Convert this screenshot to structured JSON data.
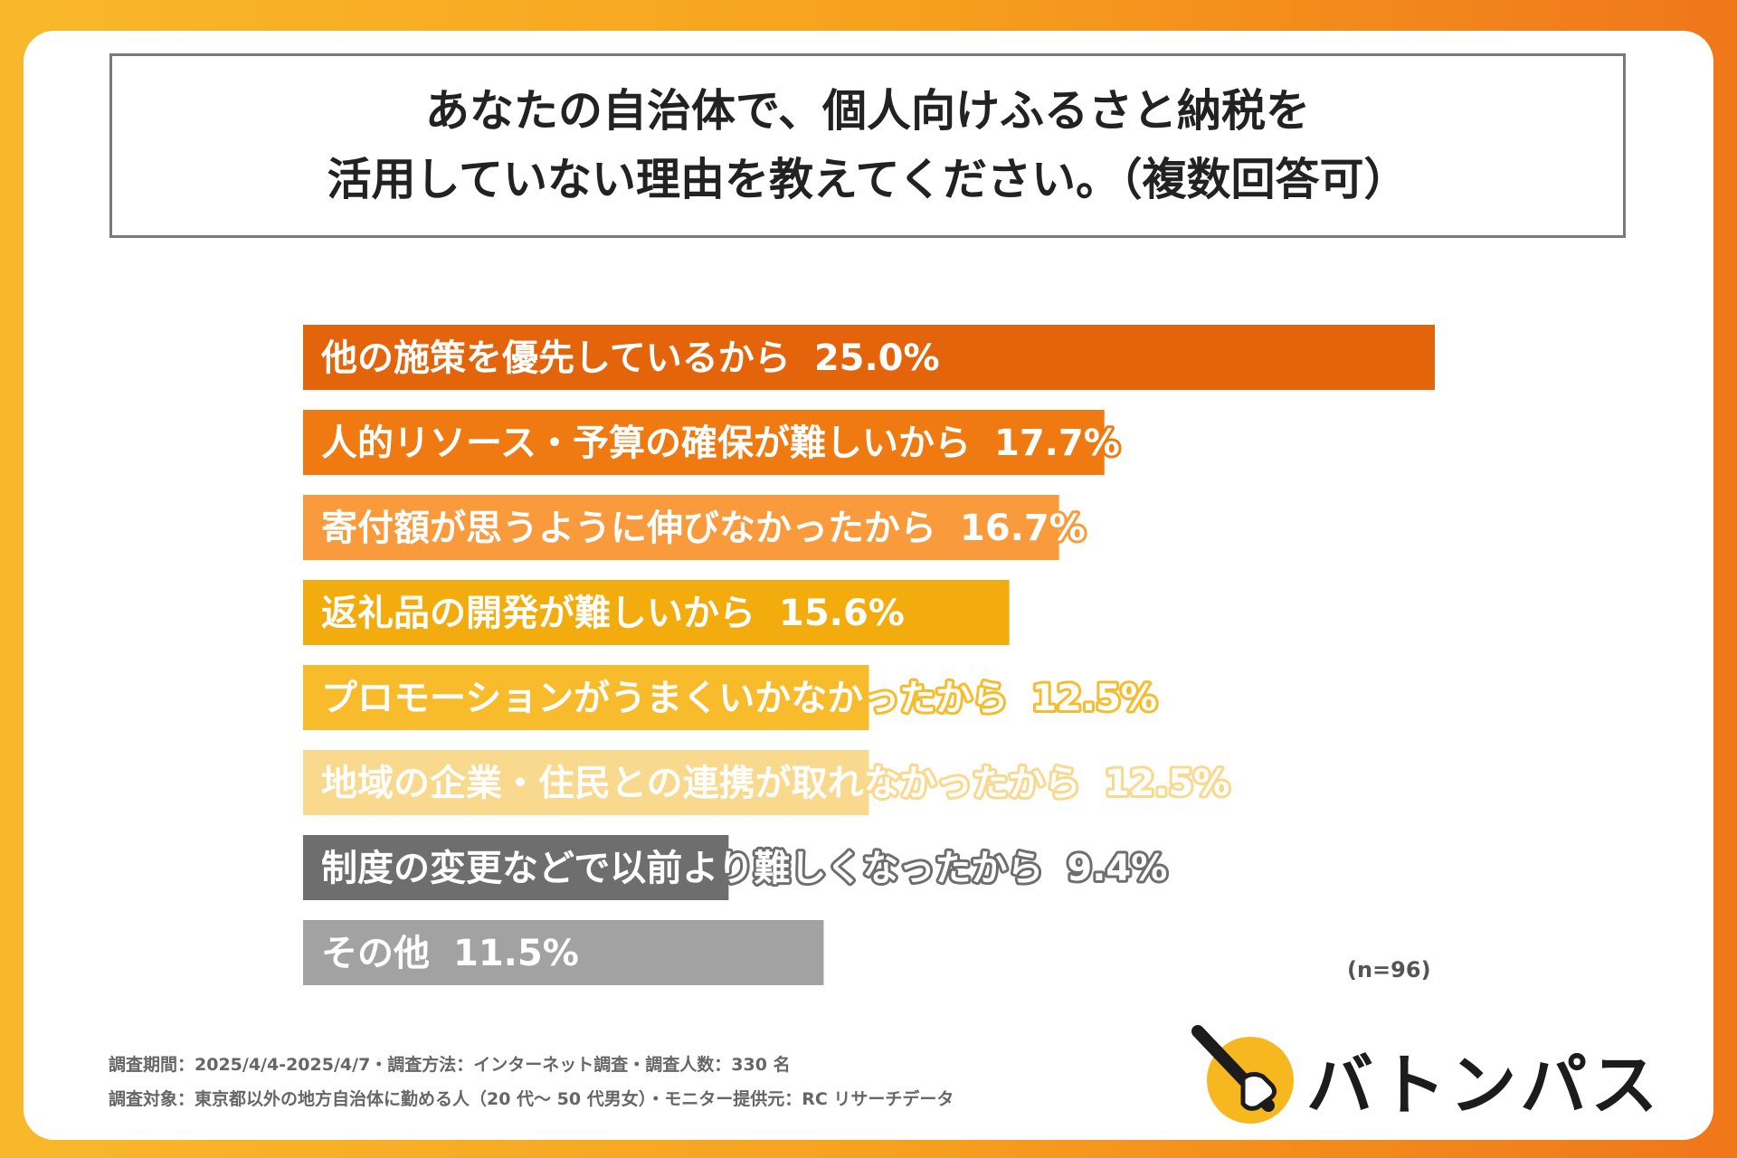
{
  "header": {
    "title_line1": "あなたの自治体で、個人向けふるさと納税を",
    "title_line2": "活用していない理由を教えてください。（複数回答可）"
  },
  "chart_data": {
    "type": "bar",
    "orientation": "horizontal",
    "categories": [
      "他の施策を優先しているから",
      "人的リソース・予算の確保が難しいから",
      "寄付額が思うように伸びなかったから",
      "返礼品の開発が難しいから",
      "プロモーションがうまくいかなかったから",
      "地域の企業・住民との連携が取れなかったから",
      "制度の変更などで以前より難しくなったから",
      "その他"
    ],
    "values": [
      25.0,
      17.7,
      16.7,
      15.6,
      12.5,
      12.5,
      9.4,
      11.5
    ],
    "value_labels": [
      "25.0%",
      "17.7%",
      "16.7%",
      "15.6%",
      "12.5%",
      "12.5%",
      "9.4%",
      "11.5%"
    ],
    "colors": [
      "#e3640a",
      "#f07a12",
      "#f99a3c",
      "#f3ac0d",
      "#f7bb2b",
      "#f8d98d",
      "#6e6e6e",
      "#a2a2a2"
    ],
    "xlim": [
      0,
      25.0
    ],
    "grid": false,
    "legend": "none",
    "sample_note": "(n=96)"
  },
  "footer": {
    "note1": "調査期間：2025/4/4-2025/4/7・調査方法：インターネット調査・調査人数：330 名",
    "note2": "調査対象：東京都以外の地方自治体に勤める人（20 代〜 50 代男女）・モニター提供元：RC リサーチデータ"
  },
  "logo": {
    "text": "バトンパス",
    "icon": "baton-hand-icon",
    "icon_color": "#f6b81e"
  }
}
